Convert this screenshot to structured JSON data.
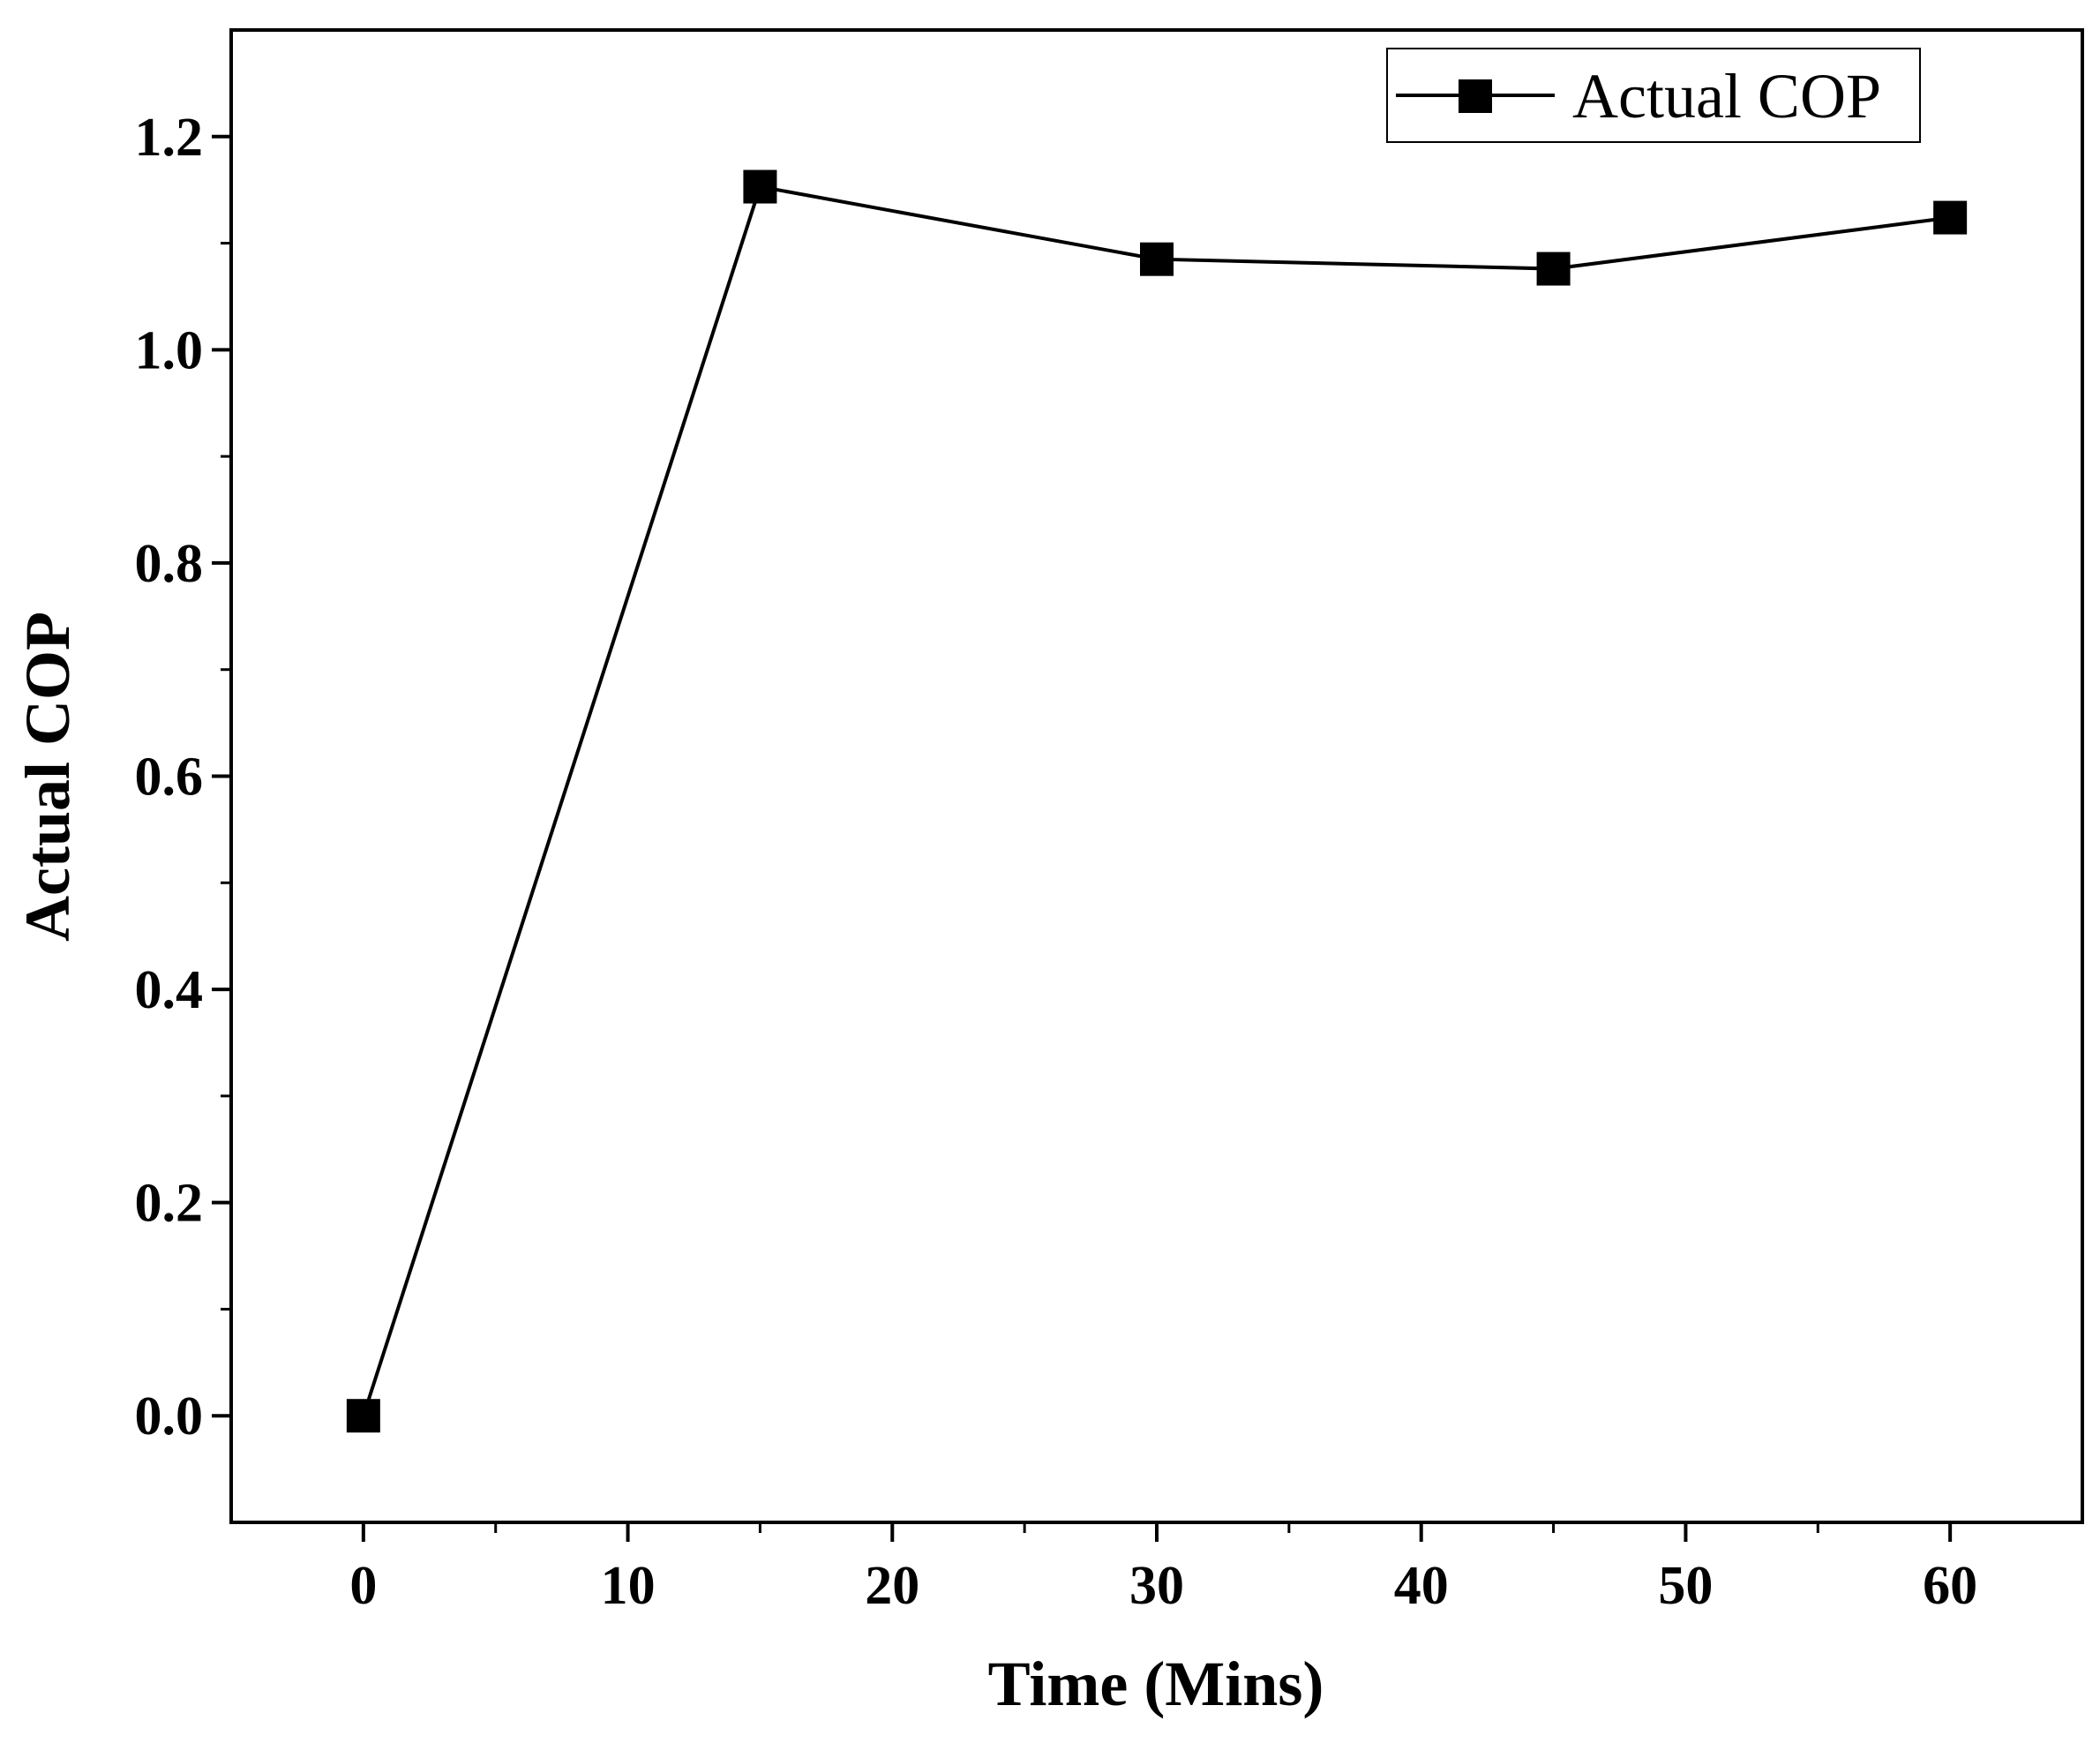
{
  "colors": {
    "series": "#000000",
    "axis": "#000000",
    "background": "#ffffff"
  },
  "chart_data": {
    "type": "line",
    "title": "",
    "xlabel": "Time (Mins)",
    "ylabel": "Actual COP",
    "xlim": [
      -5,
      65
    ],
    "ylim": [
      -0.1,
      1.3
    ],
    "xticks": [
      0,
      10,
      20,
      30,
      40,
      50,
      60
    ],
    "xtick_labels": [
      "0",
      "10",
      "20",
      "30",
      "40",
      "50",
      "60"
    ],
    "xminor": [
      5,
      15,
      25,
      35,
      45,
      55
    ],
    "yticks": [
      0.0,
      0.2,
      0.4,
      0.6,
      0.8,
      1.0,
      1.2
    ],
    "ytick_labels": [
      "0.0",
      "0.2",
      "0.4",
      "0.6",
      "0.8",
      "1.0",
      "1.2"
    ],
    "yminor": [
      0.1,
      0.3,
      0.5,
      0.7,
      0.9,
      1.1
    ],
    "grid": false,
    "legend_position": "top-right",
    "series": [
      {
        "name": "Actual COP",
        "marker": "square",
        "x": [
          0,
          15,
          30,
          45,
          60
        ],
        "y": [
          0.0,
          1.153,
          1.085,
          1.076,
          1.124
        ]
      }
    ]
  }
}
